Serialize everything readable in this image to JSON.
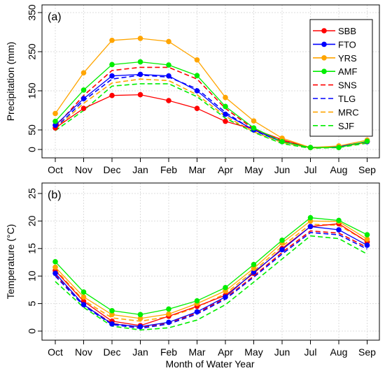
{
  "xlabel": "Month of Water Year",
  "colors": {
    "SBB": "#ff0000",
    "FTO": "#0000ff",
    "YRS": "#ffa500",
    "AMF": "#00ee00",
    "SNS": "#ff0000",
    "TLG": "#0000ff",
    "MRC": "#ffa500",
    "SJF": "#00ee00"
  },
  "chart_data": [
    {
      "type": "line",
      "panel_label": "(a)",
      "title": "",
      "xlabel": "",
      "ylabel": "Precipitation (mm)",
      "ylim": [
        0,
        350
      ],
      "yticks": [
        0,
        50,
        150,
        250,
        350
      ],
      "categories": [
        "Oct",
        "Nov",
        "Dec",
        "Jan",
        "Feb",
        "Mar",
        "Apr",
        "May",
        "Jun",
        "Jul",
        "Aug",
        "Sep"
      ],
      "grid": true,
      "legend_position": "top-right",
      "legend": [
        "SBB",
        "FTO",
        "YRS",
        "AMF",
        "SNS",
        "TLG",
        "MRC",
        "SJF"
      ],
      "series": [
        {
          "name": "SBB",
          "style": "solid-marker",
          "values": [
            55,
            105,
            138,
            140,
            125,
            105,
            72,
            52,
            25,
            5,
            6,
            20
          ]
        },
        {
          "name": "FTO",
          "style": "solid-marker",
          "values": [
            62,
            130,
            188,
            192,
            188,
            150,
            90,
            50,
            20,
            5,
            7,
            20
          ]
        },
        {
          "name": "YRS",
          "style": "solid-marker",
          "values": [
            92,
            196,
            279,
            284,
            276,
            229,
            133,
            73,
            29,
            5,
            9,
            24
          ]
        },
        {
          "name": "AMF",
          "style": "solid-marker",
          "values": [
            72,
            152,
            217,
            224,
            216,
            189,
            110,
            55,
            20,
            5,
            5,
            21
          ]
        },
        {
          "name": "SNS",
          "style": "dashed",
          "values": [
            58,
            138,
            202,
            210,
            210,
            180,
            105,
            52,
            22,
            5,
            7,
            20
          ]
        },
        {
          "name": "TLG",
          "style": "dashed",
          "values": [
            55,
            125,
            180,
            190,
            185,
            155,
            95,
            48,
            20,
            5,
            7,
            19
          ]
        },
        {
          "name": "MRC",
          "style": "dashed",
          "values": [
            52,
            118,
            170,
            180,
            176,
            140,
            85,
            45,
            18,
            4,
            6,
            18
          ]
        },
        {
          "name": "SJF",
          "style": "dashed",
          "values": [
            48,
            100,
            162,
            168,
            168,
            135,
            80,
            44,
            15,
            3,
            5,
            16
          ]
        }
      ]
    },
    {
      "type": "line",
      "panel_label": "(b)",
      "title": "",
      "xlabel": "Month of Water Year",
      "ylabel": "Temperature (°C)",
      "ylim": [
        0,
        25
      ],
      "yticks": [
        0,
        5,
        10,
        15,
        20,
        25
      ],
      "categories": [
        "Oct",
        "Nov",
        "Dec",
        "Jan",
        "Feb",
        "Mar",
        "Apr",
        "May",
        "Jun",
        "Jul",
        "Aug",
        "Sep"
      ],
      "grid": true,
      "series": [
        {
          "name": "SBB",
          "style": "solid-marker",
          "values": [
            11.0,
            5.4,
            1.8,
            1.0,
            2.7,
            4.5,
            6.5,
            10.5,
            15.0,
            19.0,
            19.5,
            16.2
          ]
        },
        {
          "name": "FTO",
          "style": "solid-marker",
          "values": [
            10.5,
            4.8,
            1.3,
            0.8,
            1.6,
            3.5,
            6.2,
            10.7,
            14.8,
            19.0,
            18.4,
            15.6
          ]
        },
        {
          "name": "YRS",
          "style": "solid-marker",
          "values": [
            11.6,
            6.2,
            3.0,
            2.3,
            3.1,
            5.0,
            7.3,
            11.4,
            16.0,
            20.0,
            19.9,
            16.7
          ]
        },
        {
          "name": "AMF",
          "style": "solid-marker",
          "values": [
            12.6,
            7.1,
            3.7,
            3.0,
            4.0,
            5.5,
            7.9,
            12.1,
            16.5,
            20.6,
            20.1,
            17.5
          ]
        },
        {
          "name": "SNS",
          "style": "dashed",
          "values": [
            10.2,
            4.8,
            1.4,
            0.7,
            1.5,
            3.3,
            6.0,
            10.0,
            14.3,
            18.2,
            17.8,
            15.2
          ]
        },
        {
          "name": "TLG",
          "style": "dashed",
          "values": [
            10.0,
            4.6,
            1.2,
            0.5,
            1.3,
            3.1,
            5.8,
            9.8,
            14.0,
            17.9,
            17.5,
            14.9
          ]
        },
        {
          "name": "MRC",
          "style": "dashed",
          "values": [
            11.2,
            5.6,
            2.4,
            1.8,
            2.6,
            4.3,
            6.8,
            10.9,
            15.4,
            19.4,
            19.2,
            16.3
          ]
        },
        {
          "name": "SJF",
          "style": "dashed",
          "values": [
            9.0,
            4.3,
            0.9,
            0.2,
            0.6,
            2.0,
            4.8,
            8.9,
            13.1,
            17.3,
            16.8,
            14.0
          ]
        }
      ]
    }
  ]
}
